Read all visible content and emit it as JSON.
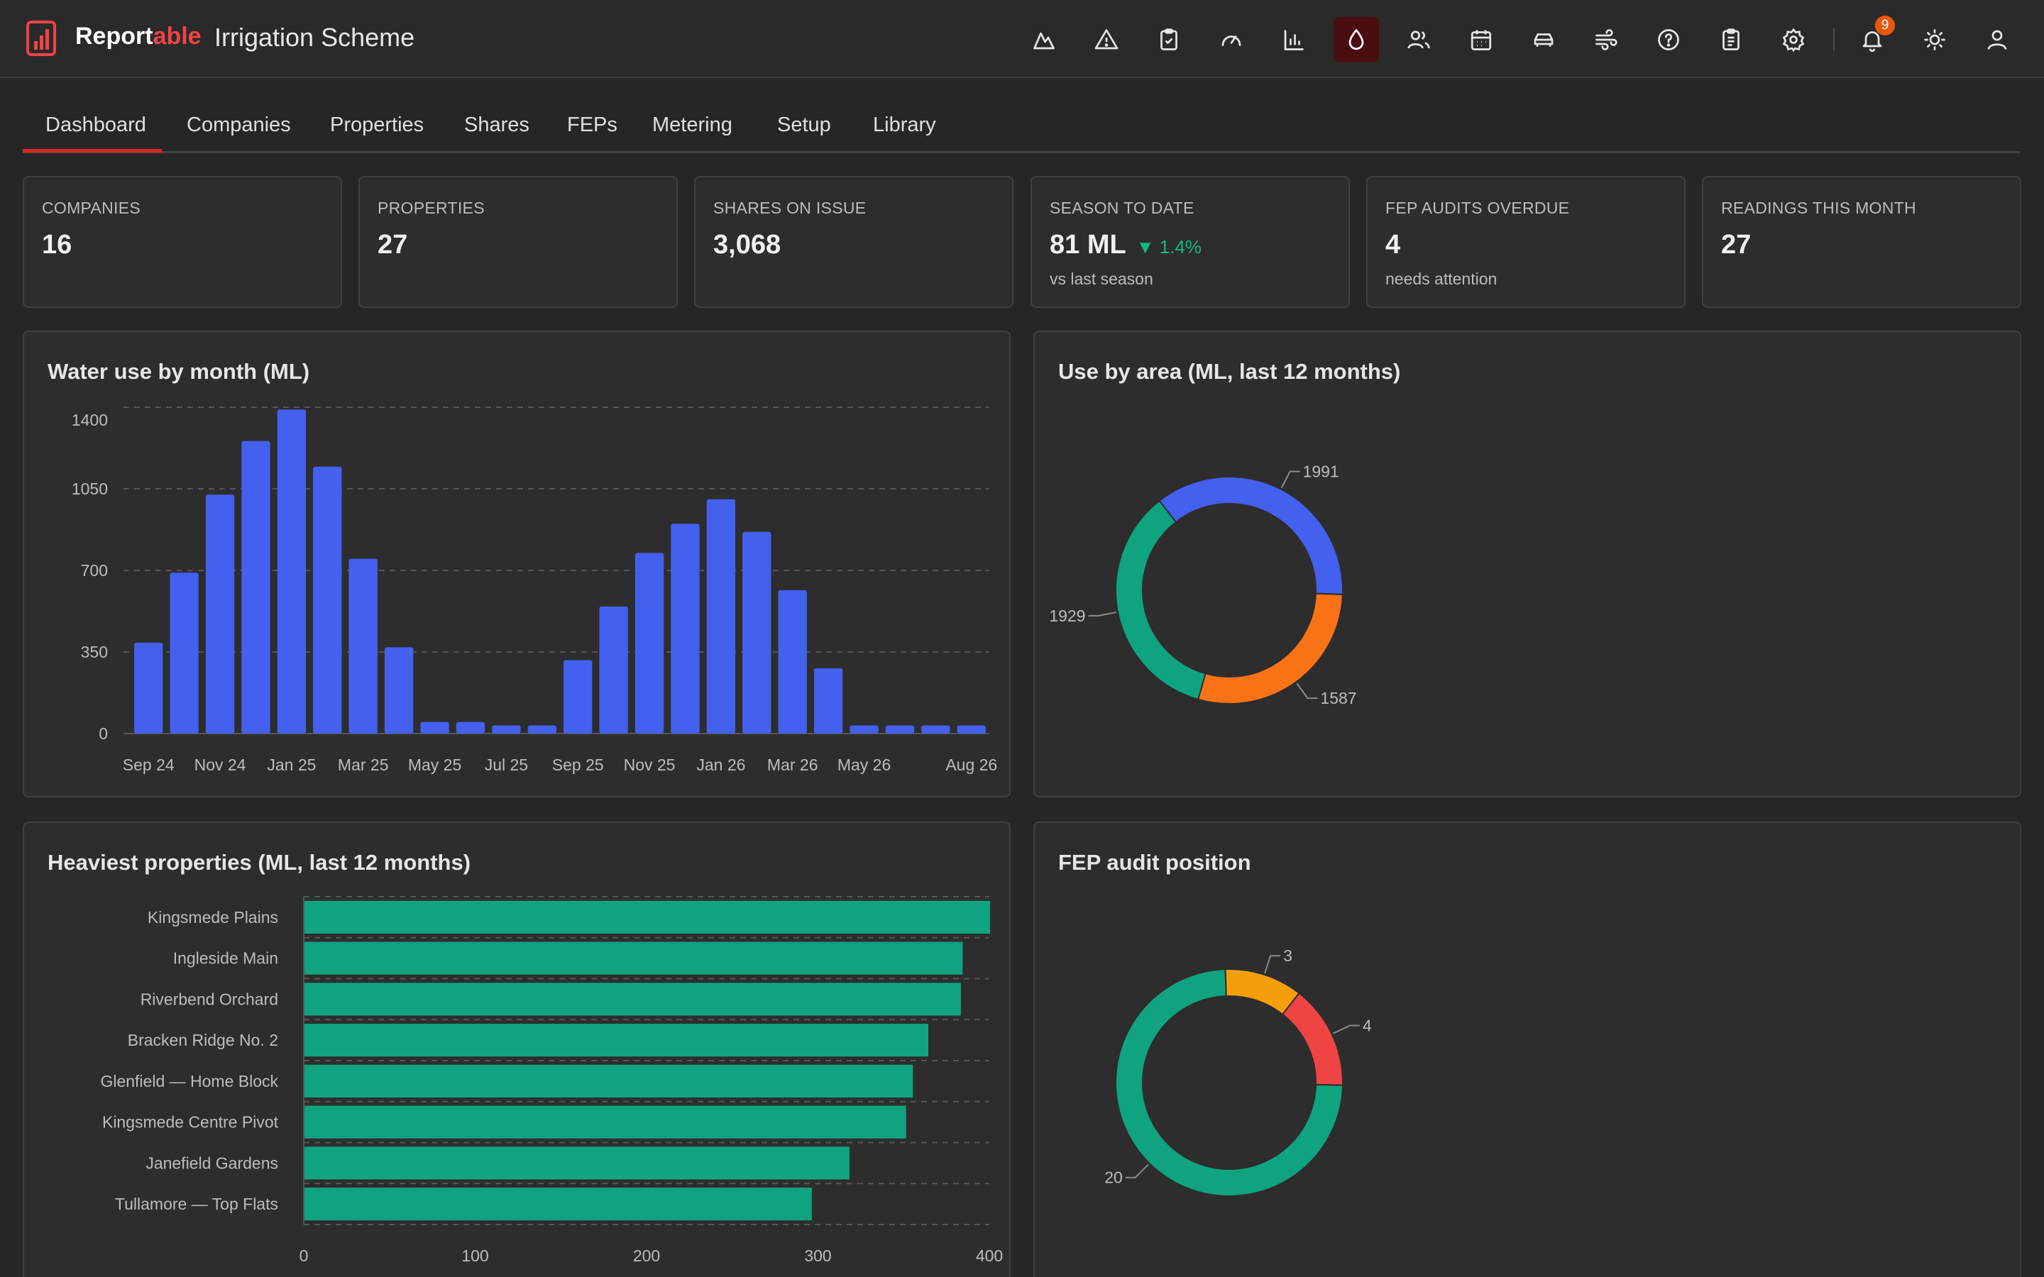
{
  "app": {
    "brand_main": "Report",
    "brand_accent": "able",
    "scheme_name": "Irrigation Scheme",
    "notification_count": "9"
  },
  "tabs": [
    "Dashboard",
    "Companies",
    "Properties",
    "Shares",
    "FEPs",
    "Metering",
    "Setup",
    "Library"
  ],
  "kpis": {
    "companies": {
      "label": "Companies",
      "value": "16"
    },
    "properties": {
      "label": "Properties",
      "value": "27"
    },
    "shares": {
      "label": "Shares on issue",
      "value": "3,068"
    },
    "season": {
      "label": "Season to date",
      "value": "81 ML",
      "delta": "▼ 1.4%",
      "sub": "vs last season"
    },
    "fep": {
      "label": "FEP audits overdue",
      "value": "4",
      "sub": "needs attention"
    },
    "readings": {
      "label": "Readings this month",
      "value": "27"
    }
  },
  "panels": {
    "water": "Water use by month (ML)",
    "area": "Use by area (ML, last 12 months)",
    "heavy": "Heaviest properties (ML, last 12 months)",
    "fep": "FEP audit position"
  },
  "colors": {
    "bar_blue": "#4361ee",
    "bar_green": "#10a37f",
    "donut_orange": "#f97316",
    "donut_amber": "#f59e0b",
    "donut_red": "#ef4444",
    "active_tab": "#dc2626"
  },
  "chart_data": [
    {
      "type": "bar",
      "title": "Water use by month (ML)",
      "categories": [
        "Sep 24",
        "Oct 24",
        "Nov 24",
        "Dec 24",
        "Jan 25",
        "Feb 25",
        "Mar 25",
        "Apr 25",
        "May 25",
        "Jun 25",
        "Jul 25",
        "Aug 25",
        "Sep 25",
        "Oct 25",
        "Nov 25",
        "Dec 25",
        "Jan 26",
        "Feb 26",
        "Mar 26",
        "Apr 26",
        "May 26",
        "Jun 26",
        "Jul 26",
        "Aug 26"
      ],
      "tick_labels": [
        "Sep 24",
        "Nov 24",
        "Jan 25",
        "Mar 25",
        "May 25",
        "Jul 25",
        "Sep 25",
        "Nov 25",
        "Jan 26",
        "Mar 26",
        "May 26",
        "Aug 26"
      ],
      "tick_index": [
        0,
        2,
        4,
        6,
        8,
        10,
        12,
        14,
        16,
        18,
        20,
        23
      ],
      "values": [
        390,
        690,
        1025,
        1255,
        1390,
        1145,
        750,
        370,
        50,
        50,
        35,
        35,
        315,
        545,
        775,
        900,
        1005,
        865,
        615,
        280,
        35,
        35,
        35,
        35
      ],
      "yticks": [
        0,
        350,
        700,
        1050,
        1400
      ],
      "ylim": [
        0,
        1400
      ],
      "grid": true
    },
    {
      "type": "pie",
      "title": "Use by area (ML, last 12 months)",
      "labels": [
        "1991",
        "1587",
        "1929"
      ],
      "values": [
        1991,
        1587,
        1929
      ],
      "colors": [
        "#4361ee",
        "#f97316",
        "#10a37f"
      ]
    },
    {
      "type": "bar",
      "orientation": "horizontal",
      "title": "Heaviest properties (ML, last 12 months)",
      "categories": [
        "Kingsmede Plains",
        "Ingleside Main",
        "Riverbend Orchard",
        "Bracken Ridge No. 2",
        "Glenfield — Home Block",
        "Kingsmede Centre Pivot",
        "Janefield Gardens",
        "Tullamore — Top Flats"
      ],
      "values": [
        400,
        384,
        383,
        364,
        355,
        351,
        318,
        296
      ],
      "xticks": [
        0,
        100,
        200,
        300,
        400
      ],
      "xlim": [
        0,
        400
      ],
      "grid": true
    },
    {
      "type": "pie",
      "title": "FEP audit position",
      "labels": [
        "3",
        "4",
        "20"
      ],
      "values": [
        3,
        4,
        20
      ],
      "colors": [
        "#f59e0b",
        "#ef4444",
        "#10a37f"
      ]
    }
  ]
}
